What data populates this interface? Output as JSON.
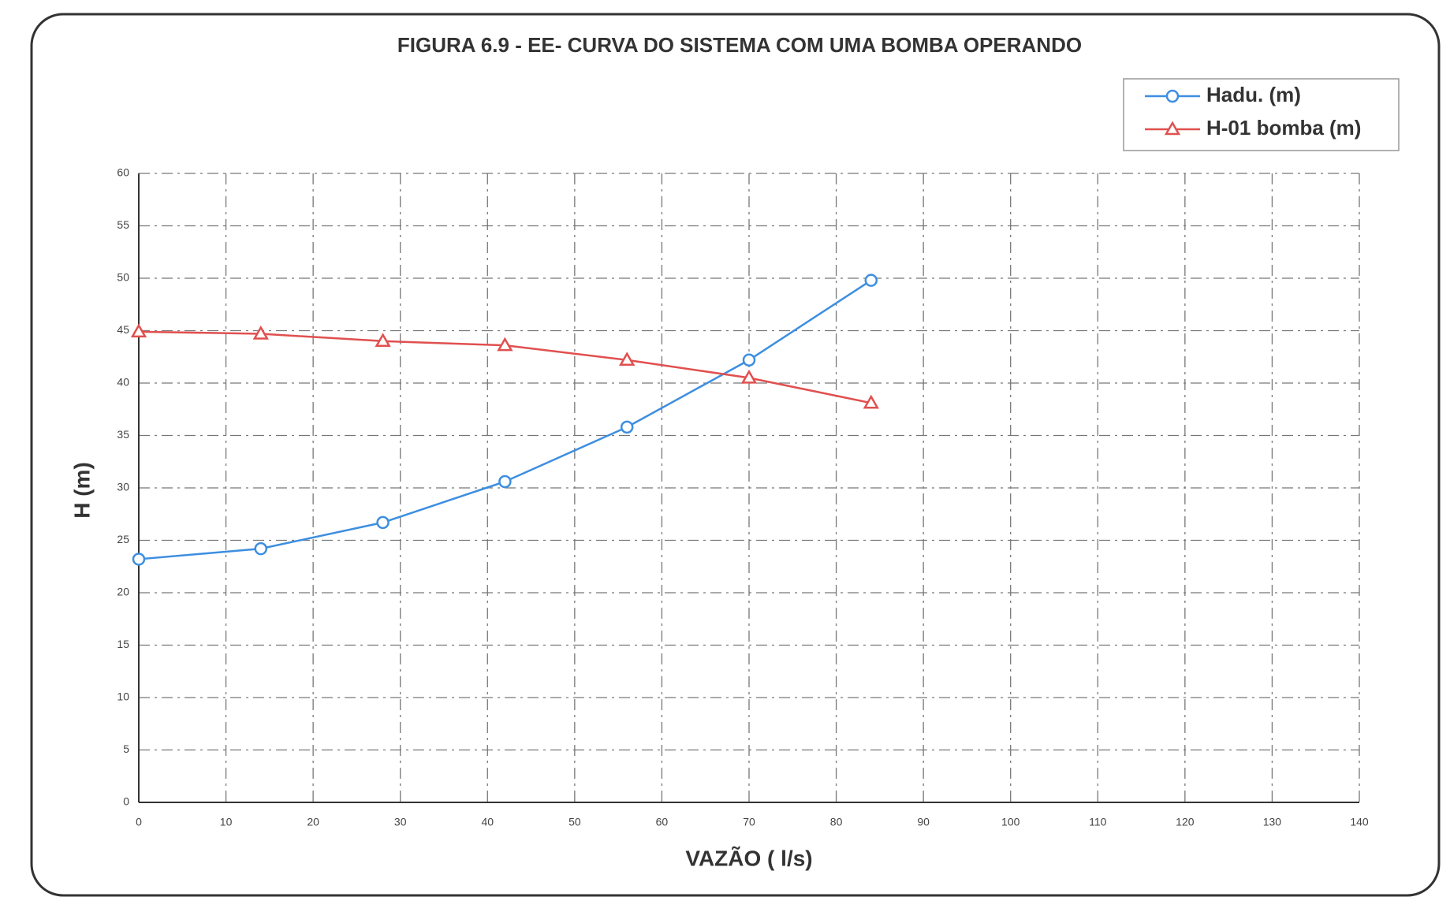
{
  "chart_data": {
    "type": "line",
    "title": "FIGURA 6.9 - EE-    CURVA DO SISTEMA COM UMA BOMBA OPERANDO",
    "x_label": "VAZÃO ( l/s)",
    "y_label": "H (m)",
    "x": [
      0,
      14,
      28,
      42,
      56,
      70,
      84
    ],
    "series": [
      {
        "name": "Hadu. (m)",
        "color": "#3d8ee0",
        "marker": "circle",
        "values": [
          23.2,
          24.2,
          26.7,
          30.6,
          35.8,
          42.2,
          49.8
        ]
      },
      {
        "name": "H-01 bomba (m)",
        "color": "#e0504f",
        "marker": "triangle",
        "values": [
          44.9,
          44.7,
          44.0,
          43.6,
          42.2,
          40.5,
          38.1
        ]
      }
    ],
    "xlim": [
      0,
      140
    ],
    "xticks": [
      0,
      10,
      20,
      30,
      40,
      50,
      60,
      70,
      80,
      90,
      100,
      110,
      120,
      130,
      140
    ],
    "ylim": [
      0,
      60
    ],
    "yticks": [
      0,
      5,
      10,
      15,
      20,
      25,
      30,
      35,
      40,
      45,
      50,
      55,
      60
    ],
    "grid": true,
    "legend": "top-right"
  }
}
